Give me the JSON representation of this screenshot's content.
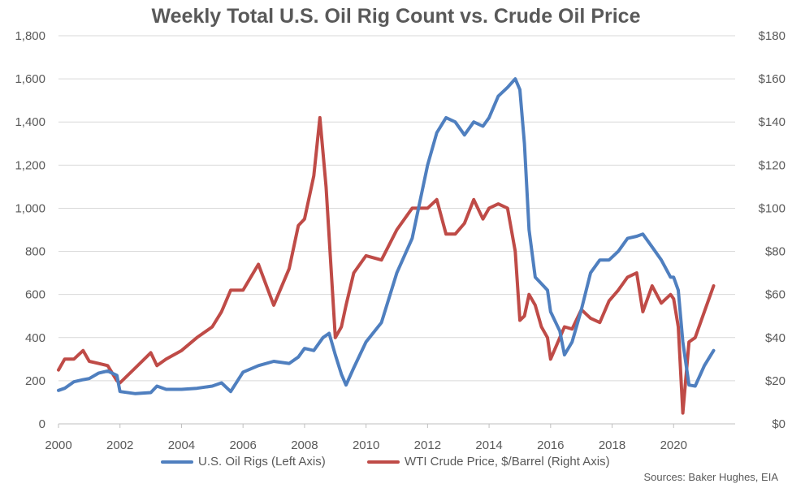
{
  "colors": {
    "rigs": "#4F7FBF",
    "price": "#BF4B47",
    "text": "#595959",
    "grid": "#D9D9D9"
  },
  "chart_data": {
    "type": "line",
    "title": "Weekly Total U.S. Oil Rig Count vs. Crude Oil Price",
    "x_ticks": [
      "2000",
      "2002",
      "2004",
      "2006",
      "2008",
      "2010",
      "2012",
      "2014",
      "2016",
      "2018",
      "2020"
    ],
    "xlim": [
      2000,
      2022
    ],
    "y_left": {
      "ylim": [
        0,
        1800
      ],
      "ticks": [
        "0",
        "200",
        "400",
        "600",
        "800",
        "1,000",
        "1,200",
        "1,400",
        "1,600",
        "1,800"
      ]
    },
    "y_right": {
      "ylim": [
        0,
        180
      ],
      "ticks": [
        "$0",
        "$20",
        "$40",
        "$60",
        "$80",
        "$100",
        "$120",
        "$140",
        "$160",
        "$180"
      ]
    },
    "grid": true,
    "legend_position": "bottom",
    "series": [
      {
        "name": "U.S. Oil Rigs (Left Axis)",
        "axis": "left",
        "points": [
          [
            2000.0,
            155
          ],
          [
            2000.2,
            165
          ],
          [
            2000.5,
            195
          ],
          [
            2000.8,
            205
          ],
          [
            2001.0,
            210
          ],
          [
            2001.3,
            235
          ],
          [
            2001.6,
            245
          ],
          [
            2001.9,
            225
          ],
          [
            2002.0,
            150
          ],
          [
            2002.5,
            140
          ],
          [
            2003.0,
            145
          ],
          [
            2003.2,
            175
          ],
          [
            2003.5,
            160
          ],
          [
            2004.0,
            160
          ],
          [
            2004.5,
            165
          ],
          [
            2005.0,
            175
          ],
          [
            2005.3,
            190
          ],
          [
            2005.6,
            150
          ],
          [
            2006.0,
            240
          ],
          [
            2006.5,
            270
          ],
          [
            2007.0,
            290
          ],
          [
            2007.5,
            280
          ],
          [
            2007.8,
            310
          ],
          [
            2008.0,
            350
          ],
          [
            2008.3,
            340
          ],
          [
            2008.6,
            400
          ],
          [
            2008.8,
            420
          ],
          [
            2009.0,
            320
          ],
          [
            2009.2,
            230
          ],
          [
            2009.35,
            180
          ],
          [
            2009.6,
            260
          ],
          [
            2010.0,
            380
          ],
          [
            2010.5,
            470
          ],
          [
            2011.0,
            700
          ],
          [
            2011.5,
            860
          ],
          [
            2012.0,
            1200
          ],
          [
            2012.3,
            1350
          ],
          [
            2012.6,
            1420
          ],
          [
            2012.9,
            1400
          ],
          [
            2013.2,
            1340
          ],
          [
            2013.5,
            1400
          ],
          [
            2013.8,
            1380
          ],
          [
            2014.0,
            1420
          ],
          [
            2014.3,
            1520
          ],
          [
            2014.6,
            1560
          ],
          [
            2014.85,
            1600
          ],
          [
            2015.0,
            1550
          ],
          [
            2015.15,
            1300
          ],
          [
            2015.3,
            900
          ],
          [
            2015.5,
            680
          ],
          [
            2015.7,
            650
          ],
          [
            2015.9,
            620
          ],
          [
            2016.0,
            520
          ],
          [
            2016.3,
            430
          ],
          [
            2016.45,
            320
          ],
          [
            2016.7,
            380
          ],
          [
            2017.0,
            530
          ],
          [
            2017.3,
            700
          ],
          [
            2017.6,
            760
          ],
          [
            2017.9,
            760
          ],
          [
            2018.2,
            800
          ],
          [
            2018.5,
            860
          ],
          [
            2018.8,
            870
          ],
          [
            2019.0,
            880
          ],
          [
            2019.3,
            820
          ],
          [
            2019.6,
            760
          ],
          [
            2019.9,
            680
          ],
          [
            2020.0,
            680
          ],
          [
            2020.15,
            620
          ],
          [
            2020.3,
            380
          ],
          [
            2020.5,
            180
          ],
          [
            2020.7,
            175
          ],
          [
            2021.0,
            270
          ],
          [
            2021.3,
            340
          ]
        ]
      },
      {
        "name": "WTI Crude Price, $/Barrel (Right Axis)",
        "axis": "right",
        "points": [
          [
            2000.0,
            25
          ],
          [
            2000.2,
            30
          ],
          [
            2000.5,
            30
          ],
          [
            2000.8,
            34
          ],
          [
            2001.0,
            29
          ],
          [
            2001.3,
            28
          ],
          [
            2001.6,
            27
          ],
          [
            2001.9,
            20
          ],
          [
            2002.0,
            19
          ],
          [
            2002.5,
            26
          ],
          [
            2003.0,
            33
          ],
          [
            2003.2,
            27
          ],
          [
            2003.5,
            30
          ],
          [
            2004.0,
            34
          ],
          [
            2004.5,
            40
          ],
          [
            2005.0,
            45
          ],
          [
            2005.3,
            52
          ],
          [
            2005.6,
            62
          ],
          [
            2006.0,
            62
          ],
          [
            2006.5,
            74
          ],
          [
            2007.0,
            55
          ],
          [
            2007.5,
            72
          ],
          [
            2007.8,
            92
          ],
          [
            2008.0,
            95
          ],
          [
            2008.3,
            115
          ],
          [
            2008.5,
            142
          ],
          [
            2008.7,
            110
          ],
          [
            2009.0,
            40
          ],
          [
            2009.2,
            45
          ],
          [
            2009.35,
            55
          ],
          [
            2009.6,
            70
          ],
          [
            2010.0,
            78
          ],
          [
            2010.5,
            76
          ],
          [
            2011.0,
            90
          ],
          [
            2011.5,
            100
          ],
          [
            2012.0,
            100
          ],
          [
            2012.3,
            104
          ],
          [
            2012.6,
            88
          ],
          [
            2012.9,
            88
          ],
          [
            2013.2,
            93
          ],
          [
            2013.5,
            104
          ],
          [
            2013.8,
            95
          ],
          [
            2014.0,
            100
          ],
          [
            2014.3,
            102
          ],
          [
            2014.6,
            100
          ],
          [
            2014.85,
            80
          ],
          [
            2015.0,
            48
          ],
          [
            2015.15,
            50
          ],
          [
            2015.3,
            60
          ],
          [
            2015.5,
            55
          ],
          [
            2015.7,
            45
          ],
          [
            2015.9,
            40
          ],
          [
            2016.0,
            30
          ],
          [
            2016.3,
            40
          ],
          [
            2016.45,
            45
          ],
          [
            2016.7,
            44
          ],
          [
            2017.0,
            53
          ],
          [
            2017.3,
            49
          ],
          [
            2017.6,
            47
          ],
          [
            2017.9,
            57
          ],
          [
            2018.2,
            62
          ],
          [
            2018.5,
            68
          ],
          [
            2018.8,
            70
          ],
          [
            2019.0,
            52
          ],
          [
            2019.3,
            64
          ],
          [
            2019.6,
            56
          ],
          [
            2019.9,
            60
          ],
          [
            2020.0,
            58
          ],
          [
            2020.15,
            45
          ],
          [
            2020.3,
            5
          ],
          [
            2020.5,
            38
          ],
          [
            2020.7,
            40
          ],
          [
            2021.0,
            52
          ],
          [
            2021.3,
            64
          ]
        ]
      }
    ],
    "source": "Sources: Baker Hughes, EIA"
  }
}
